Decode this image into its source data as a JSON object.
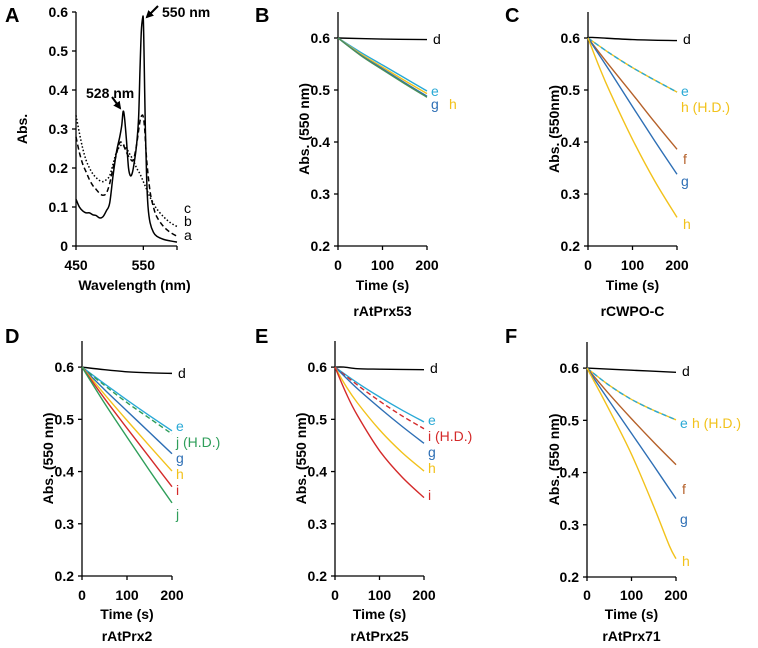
{
  "figure": {
    "panel_letters": [
      "A",
      "B",
      "C",
      "D",
      "E",
      "F"
    ]
  },
  "colors": {
    "d": "#000000",
    "e": "#29a9d6",
    "f": "#b5612a",
    "g": "#2e6fb5",
    "h": "#f2c21b",
    "i": "#d42a2a",
    "j": "#2f9e5a"
  },
  "chart_data": [
    {
      "panel": "A",
      "type": "line",
      "title": "",
      "xlabel": "Wavelength (nm)",
      "ylabel": "Abs.",
      "xlim": [
        450,
        600
      ],
      "ylim": [
        0,
        0.6
      ],
      "xticks": [
        450,
        550
      ],
      "yticks": [
        0,
        0.1,
        0.2,
        0.3,
        0.4,
        0.5,
        0.6
      ],
      "ytick_labels": [
        "0",
        "0.1",
        "0.2",
        "0.3",
        "0.4",
        "0.5",
        "0.6"
      ],
      "annotations": [
        {
          "text": "550 nm",
          "x": 550,
          "y": 0.585
        },
        {
          "text": "528 nm",
          "x": 520,
          "y": 0.345
        }
      ],
      "series": [
        {
          "name": "a",
          "style": "solid",
          "color": "#000000",
          "x": [
            450,
            455,
            460,
            465,
            470,
            475,
            480,
            485,
            490,
            495,
            500,
            505,
            510,
            515,
            518,
            520,
            522,
            525,
            528,
            531,
            534,
            537,
            540,
            543,
            545,
            547,
            549,
            550,
            551,
            553,
            555,
            557,
            560,
            565,
            570,
            580,
            590,
            600
          ],
          "y": [
            0.12,
            0.1,
            0.09,
            0.085,
            0.085,
            0.08,
            0.078,
            0.072,
            0.075,
            0.09,
            0.11,
            0.18,
            0.24,
            0.28,
            0.31,
            0.345,
            0.33,
            0.27,
            0.2,
            0.18,
            0.19,
            0.22,
            0.26,
            0.33,
            0.45,
            0.55,
            0.585,
            0.58,
            0.5,
            0.3,
            0.17,
            0.1,
            0.06,
            0.035,
            0.025,
            0.017,
            0.013,
            0.01
          ]
        },
        {
          "name": "b",
          "style": "dashed",
          "color": "#000000",
          "x": [
            450,
            455,
            460,
            465,
            470,
            475,
            480,
            485,
            490,
            495,
            500,
            505,
            510,
            515,
            520,
            525,
            530,
            535,
            540,
            545,
            548,
            550,
            552,
            555,
            560,
            565,
            570,
            580,
            590,
            600
          ],
          "y": [
            0.28,
            0.24,
            0.21,
            0.19,
            0.17,
            0.155,
            0.145,
            0.135,
            0.13,
            0.135,
            0.16,
            0.2,
            0.235,
            0.265,
            0.26,
            0.24,
            0.225,
            0.22,
            0.26,
            0.32,
            0.335,
            0.33,
            0.3,
            0.22,
            0.14,
            0.1,
            0.075,
            0.05,
            0.035,
            0.025
          ]
        },
        {
          "name": "c",
          "style": "dotted",
          "color": "#000000",
          "x": [
            450,
            455,
            460,
            465,
            470,
            475,
            480,
            485,
            490,
            495,
            500,
            505,
            510,
            515,
            520,
            525,
            530,
            535,
            540,
            545,
            550,
            555,
            560,
            565,
            570,
            580,
            590,
            600
          ],
          "y": [
            0.335,
            0.29,
            0.25,
            0.22,
            0.2,
            0.185,
            0.175,
            0.168,
            0.165,
            0.17,
            0.18,
            0.21,
            0.24,
            0.255,
            0.26,
            0.25,
            0.235,
            0.22,
            0.2,
            0.185,
            0.165,
            0.145,
            0.125,
            0.11,
            0.095,
            0.075,
            0.06,
            0.05
          ]
        }
      ]
    },
    {
      "panel": "B",
      "type": "line",
      "title": "rAtPrx53",
      "xlabel": "Time (s)",
      "ylabel": "Abs. (550 nm)",
      "xlim": [
        0,
        200
      ],
      "ylim": [
        0.2,
        0.65
      ],
      "xticks": [
        0,
        100,
        200
      ],
      "yticks": [
        0.2,
        0.3,
        0.4,
        0.5,
        0.6
      ],
      "ytick_labels": [
        "0.2",
        "0.3",
        "0.4",
        "0.5",
        "0.6"
      ],
      "series": [
        {
          "name": "d",
          "label": "d",
          "style": "solid",
          "color": "#000000",
          "x": [
            0,
            100,
            200
          ],
          "y": [
            0.6,
            0.598,
            0.597
          ]
        },
        {
          "name": "e",
          "label": "e",
          "style": "solid",
          "color": "#29a9d6",
          "x": [
            0,
            50,
            100,
            150,
            200
          ],
          "y": [
            0.6,
            0.573,
            0.548,
            0.523,
            0.498
          ]
        },
        {
          "name": "h",
          "label": "h",
          "style": "solid",
          "color": "#f2c21b",
          "x": [
            0,
            50,
            100,
            150,
            200
          ],
          "y": [
            0.6,
            0.57,
            0.544,
            0.518,
            0.493
          ]
        },
        {
          "name": "g",
          "label": "g",
          "style": "solid",
          "color": "#2e6fb5",
          "x": [
            0,
            50,
            100,
            150,
            200
          ],
          "y": [
            0.6,
            0.568,
            0.541,
            0.514,
            0.488
          ]
        },
        {
          "name": "green",
          "label": "",
          "style": "solid",
          "color": "#4a8f5a",
          "x": [
            0,
            50,
            100,
            150,
            200
          ],
          "y": [
            0.6,
            0.567,
            0.539,
            0.512,
            0.486
          ]
        }
      ],
      "end_labels": [
        {
          "text": "d",
          "series": "d"
        },
        {
          "text": "e",
          "series": "e"
        },
        {
          "text": "g",
          "series": "g"
        },
        {
          "text": "h",
          "series": "h"
        }
      ]
    },
    {
      "panel": "C",
      "type": "line",
      "title": "rCWPO-C",
      "xlabel": "Time (s)",
      "ylabel": "Abs. (550nm)",
      "xlim": [
        0,
        200
      ],
      "ylim": [
        0.2,
        0.65
      ],
      "xticks": [
        0,
        100,
        200
      ],
      "yticks": [
        0.2,
        0.3,
        0.4,
        0.5,
        0.6
      ],
      "ytick_labels": [
        "0.2",
        "0.3",
        "0.4",
        "0.5",
        "0.6"
      ],
      "series": [
        {
          "name": "d",
          "style": "solid",
          "color": "#000000",
          "x": [
            0,
            10,
            100,
            200
          ],
          "y": [
            0.6,
            0.601,
            0.597,
            0.595
          ]
        },
        {
          "name": "h (H.D.)",
          "style": "solid",
          "color": "#f2c21b",
          "x": [
            0,
            50,
            100,
            150,
            200
          ],
          "y": [
            0.6,
            0.57,
            0.543,
            0.519,
            0.496
          ]
        },
        {
          "name": "e",
          "style": "dashed",
          "color": "#29a9d6",
          "x": [
            0,
            50,
            100,
            150,
            200
          ],
          "y": [
            0.6,
            0.57,
            0.543,
            0.519,
            0.496
          ]
        },
        {
          "name": "f",
          "style": "solid",
          "color": "#b5612a",
          "x": [
            0,
            50,
            100,
            150,
            200
          ],
          "y": [
            0.6,
            0.545,
            0.492,
            0.438,
            0.386
          ]
        },
        {
          "name": "g",
          "style": "solid",
          "color": "#2e6fb5",
          "x": [
            0,
            50,
            100,
            150,
            200
          ],
          "y": [
            0.6,
            0.535,
            0.468,
            0.402,
            0.338
          ]
        },
        {
          "name": "h",
          "style": "solid",
          "color": "#f2c21b",
          "x": [
            0,
            25,
            50,
            100,
            150,
            200
          ],
          "y": [
            0.6,
            0.545,
            0.495,
            0.405,
            0.325,
            0.255
          ]
        }
      ],
      "end_labels": [
        {
          "text": "d",
          "color": "#000000"
        },
        {
          "text": "e",
          "color": "#29a9d6"
        },
        {
          "text": "h (H.D.)",
          "color": "#f2c21b"
        },
        {
          "text": "f",
          "color": "#b5612a"
        },
        {
          "text": "g",
          "color": "#2e6fb5"
        },
        {
          "text": "h",
          "color": "#f2c21b"
        }
      ]
    },
    {
      "panel": "D",
      "type": "line",
      "title": "rAtPrx2",
      "xlabel": "Time (s)",
      "ylabel": "Abs. (550 nm)",
      "xlim": [
        0,
        200
      ],
      "ylim": [
        0.2,
        0.65
      ],
      "xticks": [
        0,
        100,
        200
      ],
      "yticks": [
        0.2,
        0.3,
        0.4,
        0.5,
        0.6
      ],
      "ytick_labels": [
        "0.2",
        "0.3",
        "0.4",
        "0.5",
        "0.6"
      ],
      "series": [
        {
          "name": "d",
          "style": "solid",
          "color": "#000000",
          "x": [
            0,
            50,
            100,
            150,
            200
          ],
          "y": [
            0.6,
            0.595,
            0.591,
            0.589,
            0.588
          ]
        },
        {
          "name": "e",
          "style": "solid",
          "color": "#29a9d6",
          "x": [
            0,
            50,
            100,
            150,
            200
          ],
          "y": [
            0.6,
            0.568,
            0.537,
            0.507,
            0.478
          ]
        },
        {
          "name": "j (H.D.)",
          "style": "dashed",
          "color": "#2f9e5a",
          "x": [
            0,
            50,
            100,
            150,
            200
          ],
          "y": [
            0.6,
            0.565,
            0.532,
            0.502,
            0.472
          ]
        },
        {
          "name": "g",
          "style": "solid",
          "color": "#2e6fb5",
          "x": [
            0,
            50,
            100,
            150,
            200
          ],
          "y": [
            0.6,
            0.557,
            0.516,
            0.475,
            0.434
          ]
        },
        {
          "name": "h",
          "style": "solid",
          "color": "#f2c21b",
          "x": [
            0,
            50,
            100,
            150,
            200
          ],
          "y": [
            0.6,
            0.548,
            0.498,
            0.449,
            0.401
          ]
        },
        {
          "name": "i",
          "style": "solid",
          "color": "#d42a2a",
          "x": [
            0,
            50,
            100,
            150,
            200
          ],
          "y": [
            0.6,
            0.54,
            0.483,
            0.427,
            0.371
          ]
        },
        {
          "name": "j",
          "style": "solid",
          "color": "#2f9e5a",
          "x": [
            0,
            50,
            100,
            150,
            200
          ],
          "y": [
            0.6,
            0.531,
            0.466,
            0.402,
            0.34
          ]
        }
      ],
      "end_labels": [
        {
          "text": "d",
          "color": "#000000"
        },
        {
          "text": "e",
          "color": "#29a9d6"
        },
        {
          "text": "j (H.D.)",
          "color": "#2f9e5a"
        },
        {
          "text": "g",
          "color": "#2e6fb5"
        },
        {
          "text": "h",
          "color": "#f2c21b"
        },
        {
          "text": "i",
          "color": "#d42a2a"
        },
        {
          "text": "j",
          "color": "#2f9e5a"
        }
      ]
    },
    {
      "panel": "E",
      "type": "line",
      "title": "rAtPrx25",
      "xlabel": "Time (s)",
      "ylabel": "Abs. (550 nm)",
      "xlim": [
        0,
        200
      ],
      "ylim": [
        0.2,
        0.65
      ],
      "xticks": [
        0,
        100,
        200
      ],
      "yticks": [
        0.2,
        0.3,
        0.4,
        0.5,
        0.6
      ],
      "ytick_labels": [
        "0.2",
        "0.3",
        "0.4",
        "0.5",
        "0.6"
      ],
      "series": [
        {
          "name": "d",
          "style": "solid",
          "color": "#000000",
          "x": [
            0,
            20,
            50,
            100,
            200
          ],
          "y": [
            0.6,
            0.6,
            0.597,
            0.596,
            0.595
          ]
        },
        {
          "name": "e",
          "style": "solid",
          "color": "#29a9d6",
          "x": [
            0,
            50,
            100,
            150,
            200
          ],
          "y": [
            0.6,
            0.57,
            0.543,
            0.518,
            0.495
          ]
        },
        {
          "name": "i (H.D.)",
          "style": "dashed",
          "color": "#d42a2a",
          "x": [
            0,
            50,
            100,
            150,
            200
          ],
          "y": [
            0.6,
            0.566,
            0.535,
            0.507,
            0.482
          ]
        },
        {
          "name": "g",
          "style": "solid",
          "color": "#2e6fb5",
          "x": [
            0,
            50,
            100,
            150,
            200
          ],
          "y": [
            0.6,
            0.559,
            0.522,
            0.487,
            0.454
          ]
        },
        {
          "name": "h",
          "style": "solid",
          "color": "#f2c21b",
          "x": [
            0,
            25,
            50,
            100,
            150,
            200
          ],
          "y": [
            0.6,
            0.563,
            0.532,
            0.48,
            0.437,
            0.401
          ]
        },
        {
          "name": "i",
          "style": "solid",
          "color": "#d42a2a",
          "x": [
            0,
            25,
            50,
            100,
            150,
            200
          ],
          "y": [
            0.6,
            0.55,
            0.508,
            0.44,
            0.39,
            0.35
          ]
        }
      ],
      "end_labels": [
        {
          "text": "d",
          "color": "#000000"
        },
        {
          "text": "e",
          "color": "#29a9d6"
        },
        {
          "text": "i (H.D.)",
          "color": "#d42a2a"
        },
        {
          "text": "g",
          "color": "#2e6fb5"
        },
        {
          "text": "h",
          "color": "#f2c21b"
        },
        {
          "text": "i",
          "color": "#d42a2a"
        }
      ]
    },
    {
      "panel": "F",
      "type": "line",
      "title": "rAtPrx71",
      "xlabel": "Time (s)",
      "ylabel": "Abs. (550 nm)",
      "xlim": [
        0,
        200
      ],
      "ylim": [
        0.2,
        0.65
      ],
      "xticks": [
        0,
        100,
        200
      ],
      "yticks": [
        0.2,
        0.3,
        0.4,
        0.5,
        0.6
      ],
      "ytick_labels": [
        "0.2",
        "0.3",
        "0.4",
        "0.5",
        "0.6"
      ],
      "series": [
        {
          "name": "d",
          "style": "solid",
          "color": "#000000",
          "x": [
            0,
            100,
            200
          ],
          "y": [
            0.6,
            0.596,
            0.592
          ]
        },
        {
          "name": "h (H.D.)",
          "style": "solid",
          "color": "#f2c21b",
          "x": [
            0,
            50,
            100,
            150,
            200
          ],
          "y": [
            0.6,
            0.567,
            0.54,
            0.519,
            0.501
          ]
        },
        {
          "name": "e",
          "style": "dashed",
          "color": "#29a9d6",
          "x": [
            0,
            50,
            100,
            150,
            200
          ],
          "y": [
            0.6,
            0.567,
            0.54,
            0.519,
            0.501
          ]
        },
        {
          "name": "f",
          "style": "solid",
          "color": "#b5612a",
          "x": [
            0,
            50,
            100,
            150,
            200
          ],
          "y": [
            0.6,
            0.55,
            0.503,
            0.458,
            0.415
          ]
        },
        {
          "name": "g",
          "style": "solid",
          "color": "#2e6fb5",
          "x": [
            0,
            50,
            100,
            150,
            200
          ],
          "y": [
            0.6,
            0.537,
            0.475,
            0.413,
            0.35
          ]
        },
        {
          "name": "h",
          "style": "solid",
          "color": "#f2c21b",
          "x": [
            0,
            50,
            100,
            150,
            185,
            200
          ],
          "y": [
            0.6,
            0.52,
            0.435,
            0.335,
            0.26,
            0.235
          ]
        }
      ],
      "end_labels": [
        {
          "text": "d",
          "color": "#000000"
        },
        {
          "text": "e",
          "color": "#29a9d6"
        },
        {
          "text": "h (H.D.)",
          "color": "#f2c21b"
        },
        {
          "text": "f",
          "color": "#b5612a"
        },
        {
          "text": "g",
          "color": "#2e6fb5"
        },
        {
          "text": "h",
          "color": "#f2c21b"
        }
      ]
    }
  ]
}
